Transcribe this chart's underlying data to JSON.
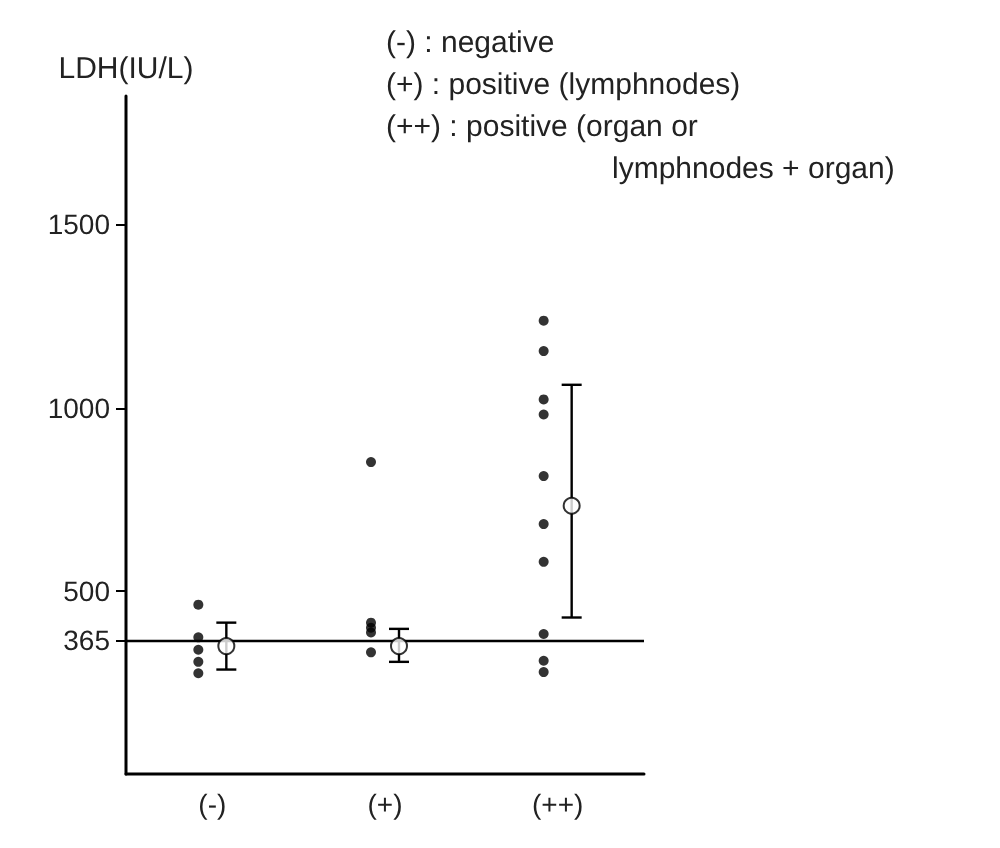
{
  "chart_data": {
    "type": "scatter",
    "ylabel": "LDH(IU/L)",
    "categories": [
      "(-)",
      "(+)",
      "(++)"
    ],
    "series": [
      {
        "color": "#000000",
        "marker": "circle",
        "x": [
          "(-)",
          "(-)",
          "(-)",
          "(-)",
          "(-)",
          "(+)",
          "(+)",
          "(+)",
          "(+)",
          "(+)",
          "(++)",
          "(++)",
          "(++)",
          "(++)",
          "(++)",
          "(++)",
          "(++)",
          "(++)",
          "(++)",
          "(++)"
        ],
        "values": [
          462,
          373,
          339,
          306,
          275,
          851,
          413,
          399,
          386,
          332,
          1237,
          1154,
          1022,
          981,
          813,
          682,
          579,
          382,
          309,
          278
        ]
      },
      {
        "color": "#ffffff",
        "marker": "circle",
        "x": [
          "(-)",
          "(+)",
          "(++)"
        ],
        "values": [
          349,
          349,
          732
        ],
        "errors": [
          [
            285,
            413
          ],
          [
            306,
            396
          ],
          [
            427,
            1062
          ]
        ]
      }
    ],
    "ylim": [
      0,
      1850
    ],
    "yticks": [
      365,
      500,
      1000,
      1500
    ],
    "ref_lines": [
      {
        "axis": "y",
        "value": 365,
        "label": null,
        "color": "#000000"
      }
    ],
    "annotations": [
      "(-) : negative",
      "(+) : positive (lymphnodes)",
      "(++) : positive (organ or",
      "lymphnodes + organ)"
    ],
    "grid": false
  }
}
